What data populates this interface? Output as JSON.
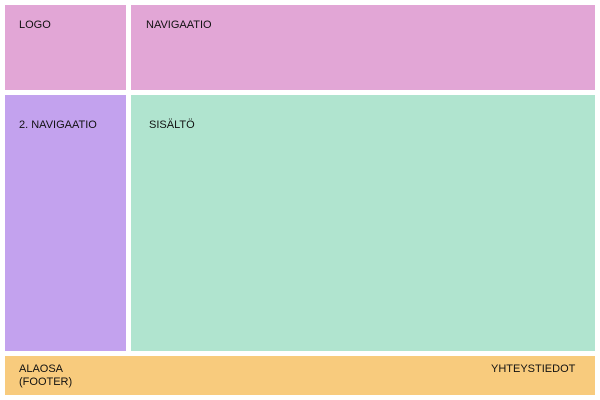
{
  "header": {
    "logo": "LOGO",
    "navigation": "NAVIGAATIO"
  },
  "sidebar": {
    "label": "2. NAVIGAATIO"
  },
  "content": {
    "label": "SISÄLTÖ"
  },
  "footer": {
    "label_lines": [
      "ALAOSA",
      "(FOOTER)"
    ],
    "contact": "YHTEYSTIEDOT"
  }
}
